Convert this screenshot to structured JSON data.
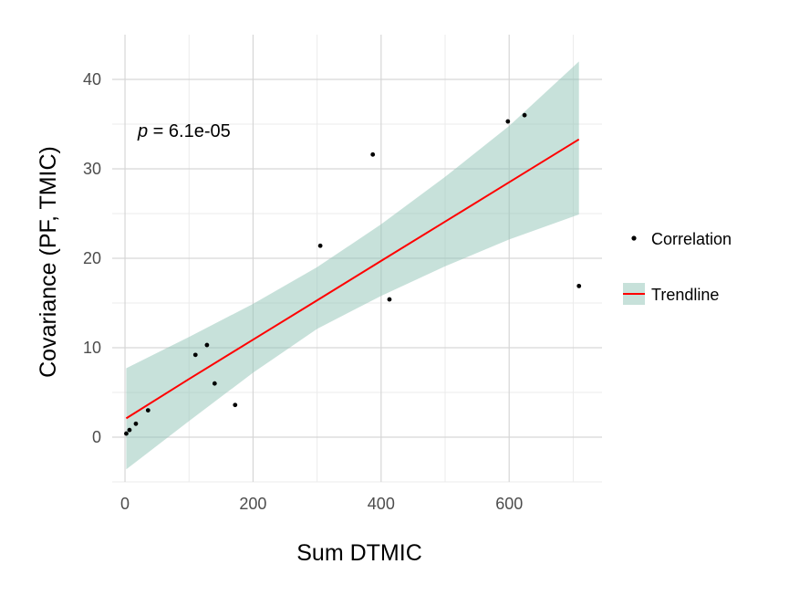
{
  "chart_data": {
    "type": "scatter",
    "xlabel": "Sum DTMIC",
    "ylabel": "Covariance (PF, TMIC)",
    "xlim": [
      -20,
      745
    ],
    "ylim": [
      -5,
      45
    ],
    "xticks": [
      0,
      200,
      400,
      600
    ],
    "yticks": [
      0,
      10,
      20,
      30,
      40
    ],
    "x_minor_ticks": [
      100,
      300,
      500,
      700
    ],
    "y_minor_ticks": [
      -5,
      5,
      15,
      25,
      35
    ],
    "grid": true,
    "legend_position": "right",
    "annotation": {
      "italic": "p",
      "text": " = 6.1e-05"
    },
    "series": [
      {
        "name": "Correlation",
        "kind": "points",
        "color": "#000000",
        "points": [
          {
            "x": 2,
            "y": 0.4
          },
          {
            "x": 7,
            "y": 0.8
          },
          {
            "x": 17,
            "y": 1.5
          },
          {
            "x": 36,
            "y": 3.0
          },
          {
            "x": 110,
            "y": 9.2
          },
          {
            "x": 128,
            "y": 10.3
          },
          {
            "x": 140,
            "y": 6.0
          },
          {
            "x": 172,
            "y": 3.6
          },
          {
            "x": 305,
            "y": 21.4
          },
          {
            "x": 387,
            "y": 31.6
          },
          {
            "x": 413,
            "y": 15.4
          },
          {
            "x": 598,
            "y": 35.3
          },
          {
            "x": 624,
            "y": 36.0
          },
          {
            "x": 709,
            "y": 16.9
          }
        ]
      },
      {
        "name": "Trendline",
        "kind": "line",
        "color": "#ff0000",
        "ribbon_color": "#8fc3b5",
        "x": [
          2,
          100,
          200,
          300,
          400,
          500,
          600,
          709
        ],
        "fit": [
          2.1,
          6.5,
          10.9,
          15.3,
          19.7,
          24.1,
          28.5,
          33.3
        ],
        "lower": [
          -3.6,
          1.8,
          7.2,
          12.1,
          15.8,
          19.1,
          22.1,
          24.9
        ],
        "upper": [
          7.7,
          11.2,
          14.9,
          19.0,
          23.8,
          29.1,
          34.8,
          42.0
        ]
      }
    ]
  }
}
